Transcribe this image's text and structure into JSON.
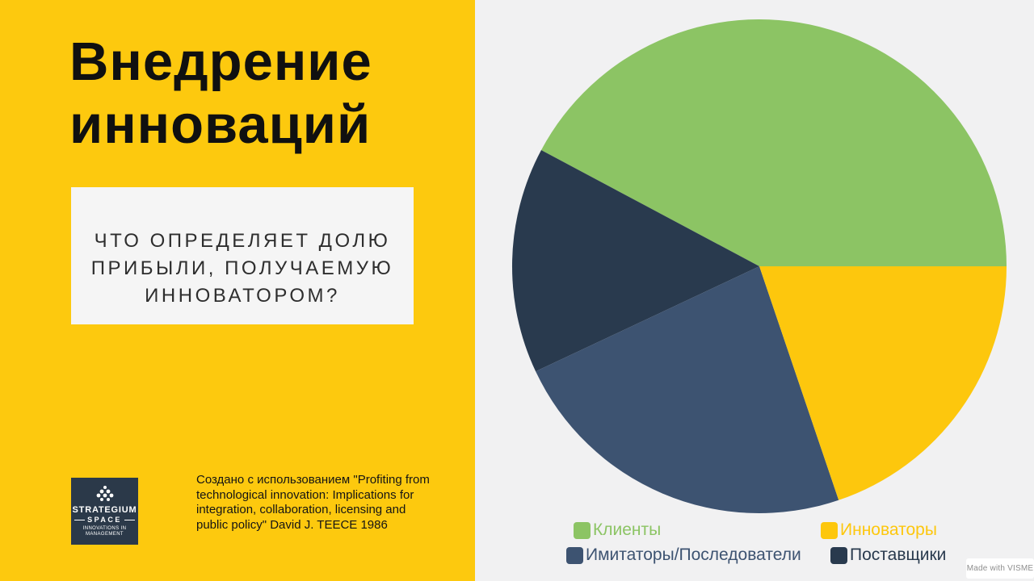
{
  "palette": {
    "brand_yellow": "#fdc90e",
    "chart_bg": "#f1f1f2",
    "title_color": "#101010",
    "subtitle_bg": "#f5f5f5",
    "logo_bg": "#2b3949",
    "watermark_color": "#8e8e8e"
  },
  "left_panel": {
    "title": "Внедрение\nинноваций",
    "subtitle": "ЧТО ОПРЕДЕЛЯЕТ ДОЛЮ\nПРИБЫЛИ, ПОЛУЧАЕМУЮ\nИННОВАТОРОМ?",
    "citation": "Создано с использованием \"Profiting from\ntechnological innovation: Implications for\nintegration, collaboration, licensing and\npublic policy\" David J. TEECE 1986",
    "logo": {
      "name_line1": "STRATEGIUM",
      "name_line2": "SPACE",
      "tagline": "INNOVATIONS IN\nMANAGEMENT"
    }
  },
  "chart_data": {
    "type": "pie",
    "title": "",
    "direction": "counterclockwise",
    "start_angle_deg": 0,
    "slices": [
      {
        "label": "Клиенты",
        "value": 42.2,
        "color": "#8cc464"
      },
      {
        "label": "Поставщики",
        "value": 14.8,
        "color": "#293a4e"
      },
      {
        "label": "Имитаторы/Последователи",
        "value": 23.2,
        "color": "#3d5371"
      },
      {
        "label": "Инноваторы",
        "value": 19.8,
        "color": "#fdc70d"
      }
    ],
    "legend_position": "bottom",
    "legend": [
      {
        "label": "Клиенты",
        "color": "#8cc464"
      },
      {
        "label": "Инноваторы",
        "color": "#fdc70d"
      },
      {
        "label": "Имитаторы/Последователи",
        "color": "#3d5371"
      },
      {
        "label": "Поставщики",
        "color": "#293a4e"
      }
    ]
  },
  "watermark": {
    "text": "Made with VISME"
  }
}
